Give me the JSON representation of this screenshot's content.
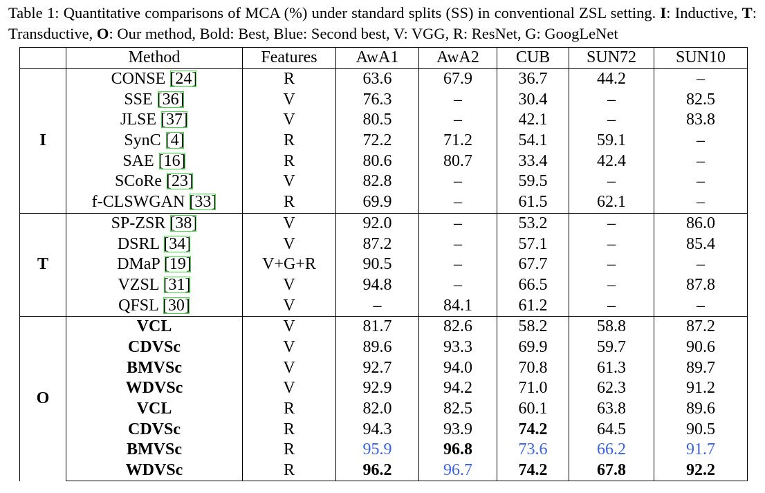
{
  "caption": [
    {
      "text": "Table 1: Quantitative comparisons of MCA (%) under standard splits (SS) in conventional ZSL setting. "
    },
    {
      "text": "I",
      "bold": true
    },
    {
      "text": ": Inductive, "
    },
    {
      "text": "T",
      "bold": true
    },
    {
      "text": ": Transductive, "
    },
    {
      "text": "O",
      "bold": true
    },
    {
      "text": ": Our method, Bold: Best, Blue: Second best, V: VGG, R: ResNet, G: GoogLeNet"
    }
  ],
  "table": {
    "headers": [
      "Method",
      "Features",
      "AwA1",
      "AwA2",
      "CUB",
      "SUN72",
      "SUN10"
    ],
    "groups": [
      {
        "label": "I",
        "rows": [
          {
            "method": "CONSE",
            "ref": "[24]",
            "features": "R",
            "values": [
              "63.6",
              "67.9",
              "36.7",
              "44.2",
              "–"
            ]
          },
          {
            "method": "SSE",
            "ref": "[36]",
            "features": "V",
            "values": [
              "76.3",
              "–",
              "30.4",
              "–",
              "82.5"
            ]
          },
          {
            "method": "JLSE",
            "ref": "[37]",
            "features": "V",
            "values": [
              "80.5",
              "–",
              "42.1",
              "–",
              "83.8"
            ]
          },
          {
            "method": "SynC",
            "ref": "[4]",
            "features": "R",
            "values": [
              "72.2",
              "71.2",
              "54.1",
              "59.1",
              "–"
            ]
          },
          {
            "method": "SAE",
            "ref": "[16]",
            "features": "R",
            "values": [
              "80.6",
              "80.7",
              "33.4",
              "42.4",
              "–"
            ]
          },
          {
            "method": "SCoRe",
            "ref": "[23]",
            "features": "V",
            "values": [
              "82.8",
              "–",
              "59.5",
              "–",
              "–"
            ]
          },
          {
            "method": "f-CLSWGAN",
            "ref": "[33]",
            "features": "R",
            "values": [
              "69.9",
              "–",
              "61.5",
              "62.1",
              "–"
            ]
          }
        ]
      },
      {
        "label": "T",
        "rows": [
          {
            "method": "SP-ZSR",
            "ref": "[38]",
            "features": "V",
            "values": [
              "92.0",
              "–",
              "53.2",
              "–",
              "86.0"
            ]
          },
          {
            "method": "DSRL",
            "ref": "[34]",
            "features": "V",
            "values": [
              "87.2",
              "–",
              "57.1",
              "–",
              "85.4"
            ]
          },
          {
            "method": "DMaP",
            "ref": "[19]",
            "features": "V+G+R",
            "values": [
              "90.5",
              "–",
              "67.7",
              "–",
              "–"
            ]
          },
          {
            "method": "VZSL",
            "ref": "[31]",
            "features": "V",
            "values": [
              "94.8",
              "–",
              "66.5",
              "–",
              "87.8"
            ]
          },
          {
            "method": "QFSL",
            "ref": "[30]",
            "features": "V",
            "values": [
              "–",
              "84.1",
              "61.2",
              "–",
              "–"
            ]
          }
        ]
      },
      {
        "label": "O",
        "bold_methods": true,
        "rows": [
          {
            "method": "VCL",
            "features": "V",
            "values": [
              "81.7",
              "82.6",
              "58.2",
              "58.8",
              "87.2"
            ]
          },
          {
            "method": "CDVSc",
            "features": "V",
            "values": [
              "89.6",
              "93.3",
              "69.9",
              "59.7",
              "90.6"
            ]
          },
          {
            "method": "BMVSc",
            "features": "V",
            "values": [
              "92.7",
              "94.0",
              "70.8",
              "61.3",
              "89.7"
            ]
          },
          {
            "method": "WDVSc",
            "features": "V",
            "values": [
              "92.9",
              "94.2",
              "71.0",
              "62.3",
              "91.2"
            ]
          },
          {
            "method": "VCL",
            "features": "R",
            "values": [
              "82.0",
              "82.5",
              "60.1",
              "63.8",
              "89.6"
            ]
          },
          {
            "method": "CDVSc",
            "features": "R",
            "values": [
              "94.3",
              "93.9",
              {
                "text": "74.2",
                "style": "best"
              },
              "64.5",
              "90.5"
            ]
          },
          {
            "method": "BMVSc",
            "features": "R",
            "values": [
              {
                "text": "95.9",
                "style": "second"
              },
              {
                "text": "96.8",
                "style": "best"
              },
              {
                "text": "73.6",
                "style": "second"
              },
              {
                "text": "66.2",
                "style": "second"
              },
              {
                "text": "91.7",
                "style": "second"
              }
            ]
          },
          {
            "method": "WDVSc",
            "features": "R",
            "values": [
              {
                "text": "96.2",
                "style": "best"
              },
              {
                "text": "96.7",
                "style": "second"
              },
              {
                "text": "74.2",
                "style": "best"
              },
              {
                "text": "67.8",
                "style": "best"
              },
              {
                "text": "92.2",
                "style": "best"
              }
            ]
          }
        ]
      }
    ]
  }
}
